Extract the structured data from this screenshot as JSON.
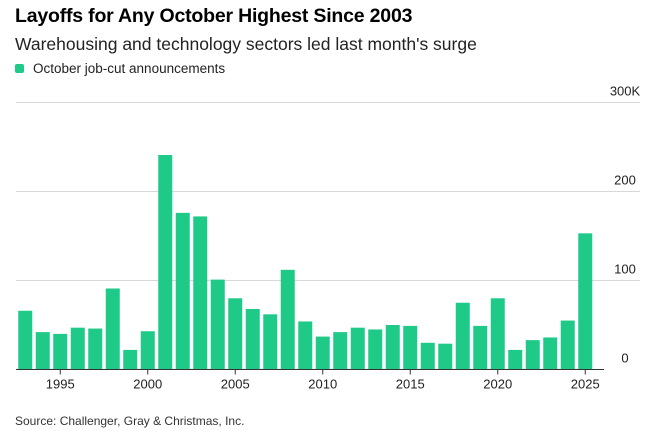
{
  "title": "Layoffs for Any October Highest Since 2003",
  "subtitle": "Warehousing and technology sectors led last month's surge",
  "source": "Source: Challenger, Gray & Christmas, Inc.",
  "colors": {
    "bar": "#1fca88",
    "grid": "#d8d8d8",
    "axis": "#333333"
  },
  "chart_data": {
    "type": "bar",
    "legend": {
      "position": "top-left",
      "entries": [
        "October job-cut announcements"
      ]
    },
    "x": [
      1993,
      1994,
      1995,
      1996,
      1997,
      1998,
      1999,
      2000,
      2001,
      2002,
      2003,
      2004,
      2005,
      2006,
      2007,
      2008,
      2009,
      2010,
      2011,
      2012,
      2013,
      2014,
      2015,
      2016,
      2017,
      2018,
      2019,
      2020,
      2021,
      2022,
      2023,
      2024,
      2025
    ],
    "series": [
      {
        "name": "October job-cut announcements",
        "values": [
          66,
          42,
          40,
          47,
          46,
          91,
          22,
          43,
          241,
          176,
          172,
          101,
          80,
          68,
          62,
          112,
          54,
          37,
          42,
          47,
          45,
          50,
          49,
          30,
          29,
          75,
          49,
          80,
          22,
          33,
          36,
          55,
          153
        ]
      }
    ],
    "x_tick_labels": [
      "1995",
      "2000",
      "2005",
      "2010",
      "2015",
      "2020",
      "2025"
    ],
    "y_tick_labels": [
      "0",
      "100",
      "200",
      "300K"
    ],
    "y_ticks": [
      0,
      100,
      200,
      300
    ],
    "ylim": [
      0,
      310
    ],
    "xlabel": "",
    "ylabel": "",
    "grid": "horizontal"
  }
}
